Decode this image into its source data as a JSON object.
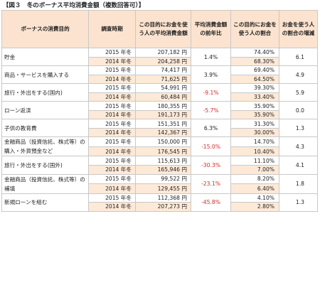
{
  "title": "【図３　冬のボーナス平均消費金額（複数回答可）】",
  "headers": {
    "category": "ボーナスの消費目的",
    "period": "調査時期",
    "amount": "この目的にお金を使う人の平均消費金額",
    "change": "平均消費金額の前年比",
    "share": "この目的にお金を使う人の割合",
    "increase": "お金を使う人の割合の増減"
  },
  "groups": [
    {
      "category": "貯金",
      "change": "1.4%",
      "increase": "6.1",
      "y2015": {
        "period": "2015 年冬",
        "amount": "207,182 円",
        "share": "74.40%"
      },
      "y2014": {
        "period": "2014 年冬",
        "amount": "204,258 円",
        "share": "68.30%"
      }
    },
    {
      "category": "商品・サービスを購入する",
      "change": "3.9%",
      "increase": "4.9",
      "y2015": {
        "period": "2015 年冬",
        "amount": "74,417 円",
        "share": "69.40%"
      },
      "y2014": {
        "period": "2014 年冬",
        "amount": "71,625 円",
        "share": "64.50%"
      }
    },
    {
      "category": "旅行・外出をする(国内)",
      "change": "-9.1%",
      "increase": "5.9",
      "y2015": {
        "period": "2015 年冬",
        "amount": "54,991 円",
        "share": "39.30%"
      },
      "y2014": {
        "period": "2014 年冬",
        "amount": "60,484 円",
        "share": "33.40%"
      }
    },
    {
      "category": "ローン返済",
      "change": "-5.7%",
      "increase": "0.0",
      "y2015": {
        "period": "2015 年冬",
        "amount": "180,355 円",
        "share": "35.90%"
      },
      "y2014": {
        "period": "2014 年冬",
        "amount": "191,173 円",
        "share": "35.90%"
      }
    },
    {
      "category": "子供の教育費",
      "change": "6.3%",
      "increase": "1.3",
      "y2015": {
        "period": "2015 年冬",
        "amount": "151,351 円",
        "share": "31.30%"
      },
      "y2014": {
        "period": "2014 年冬",
        "amount": "142,367 円",
        "share": "30.00%"
      }
    },
    {
      "category": "金融商品（投資信託、株式等）の購入・外貨預金など",
      "change": "-15.0%",
      "increase": "4.3",
      "y2015": {
        "period": "2015 年冬",
        "amount": "150,000 円",
        "share": "14.70%"
      },
      "y2014": {
        "period": "2014 年冬",
        "amount": "176,545 円",
        "share": "10.40%"
      }
    },
    {
      "category": "旅行・外出をする(国外)",
      "change": "-30.3%",
      "increase": "4.1",
      "y2015": {
        "period": "2015 年冬",
        "amount": "115,613 円",
        "share": "11.10%"
      },
      "y2014": {
        "period": "2014 年冬",
        "amount": "165,946 円",
        "share": "7.00%"
      }
    },
    {
      "category": "金融商品（投資信託、株式等）の補填",
      "change": "-23.1%",
      "increase": "1.8",
      "y2015": {
        "period": "2015 年冬",
        "amount": "99,522 円",
        "share": "8.20%"
      },
      "y2014": {
        "period": "2014 年冬",
        "amount": "129,455 円",
        "share": "6.40%"
      }
    },
    {
      "category": "新規ローンを組む",
      "change": "-45.8%",
      "increase": "1.3",
      "y2015": {
        "period": "2015 年冬",
        "amount": "112,368 円",
        "share": "4.10%"
      },
      "y2014": {
        "period": "2014 年冬",
        "amount": "207,273 円",
        "share": "2.80%"
      }
    }
  ],
  "colors": {
    "header_bg": "#fbe3cf",
    "row2014_bg": "#fde9d7",
    "negative": "#d42a2a",
    "border": "#c8c8c8"
  }
}
